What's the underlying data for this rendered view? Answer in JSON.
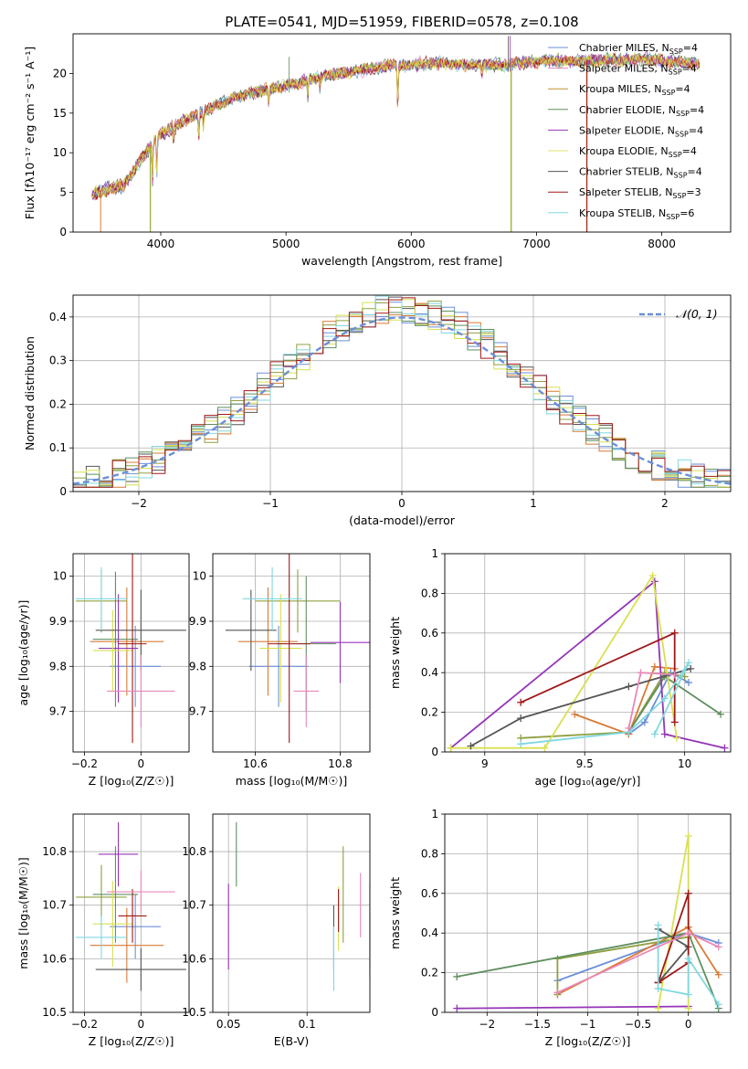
{
  "title": "PLATE=0541, MJD=51959, FIBERID=0578, z=0.108",
  "colors": [
    "#6b8fd8",
    "#d87a35",
    "#8fa040",
    "#5f8f5f",
    "#9535b8",
    "#d8e050",
    "#555555",
    "#a01818",
    "#80d8e0",
    "#e888b8"
  ],
  "chart_data": [
    {
      "id": "spectrum",
      "type": "line",
      "title": "PLATE=0541, MJD=51959, FIBERID=0578, z=0.108",
      "xlabel": "wavelength [Angstrom, rest frame]",
      "ylabel": "Flux [fλ10⁻¹⁷ erg cm⁻² s⁻¹ A⁻¹]",
      "xlim": [
        3300,
        8550
      ],
      "ylim": [
        0,
        25
      ],
      "xticks": [
        4000,
        5000,
        6000,
        7000,
        8000
      ],
      "yticks": [
        0,
        5,
        10,
        15,
        20
      ],
      "continuum": {
        "x": [
          3450,
          3700,
          4000,
          4300,
          4600,
          5000,
          5400,
          5800,
          6200,
          6600,
          7000,
          7400,
          7800,
          8300
        ],
        "y": [
          4.8,
          6.0,
          12.5,
          15.0,
          17.0,
          18.5,
          20.0,
          20.9,
          21.3,
          21.0,
          21.5,
          21.6,
          21.8,
          21.2
        ]
      },
      "legend": [
        "Chabrier MILES, N_SSP=4",
        "Salpeter MILES, N_SSP=4",
        "Kroupa MILES, N_SSP=4",
        "Chabrier ELODIE, N_SSP=4",
        "Salpeter ELODIE, N_SSP=4",
        "Kroupa ELODIE, N_SSP=4",
        "Chabrier STELIB, N_SSP=4",
        "Salpeter STELIB, N_SSP=3",
        "Kroupa STELIB, N_SSP=6"
      ],
      "legend_colors": [
        "#6b8fd8",
        "#e888b8",
        "#c09030",
        "#5f8f5f",
        "#9535b8",
        "#e0e070",
        "#555555",
        "#a01818",
        "#80d8e0"
      ],
      "legend_position": "upper-right"
    },
    {
      "id": "residuals",
      "type": "histogram",
      "xlabel": "(data-model)/error",
      "ylabel": "Normed distribution",
      "xlim": [
        -2.5,
        2.5
      ],
      "ylim": [
        0,
        0.45
      ],
      "xticks": [
        -2,
        -1,
        0,
        1,
        2
      ],
      "yticks": [
        0.0,
        0.1,
        0.2,
        0.3,
        0.4
      ],
      "legend": [
        "𝒩(0, 1)"
      ],
      "grid": true
    },
    {
      "id": "age-vs-Z",
      "type": "scatter",
      "xlabel": "Z [log₁₀(Z/Z☉)]",
      "ylabel": "age [log₁₀(age/yr)]",
      "xlim": [
        -0.24,
        0.17
      ],
      "ylim": [
        9.61,
        10.05
      ],
      "xticks": [
        -0.2,
        0.0
      ],
      "yticks": [
        9.7,
        9.8,
        9.9,
        10.0
      ],
      "points": [
        {
          "x": -0.02,
          "y": 9.8,
          "xerr": 0.09,
          "yerr": 0.09
        },
        {
          "x": -0.05,
          "y": 9.855,
          "xerr": 0.13,
          "yerr": 0.12
        },
        {
          "x": -0.14,
          "y": 9.945,
          "xerr": 0.09,
          "yerr": 0.07
        },
        {
          "x": -0.09,
          "y": 9.86,
          "xerr": 0.08,
          "yerr": 0.15
        },
        {
          "x": -0.08,
          "y": 9.84,
          "xerr": 0.07,
          "yerr": 0.12
        },
        {
          "x": -0.1,
          "y": 9.835,
          "xerr": 0.07,
          "yerr": 0.09
        },
        {
          "x": 0.0,
          "y": 9.88,
          "xerr": 0.16,
          "yerr": 0.09
        },
        {
          "x": -0.03,
          "y": 9.85,
          "xerr": 0.05,
          "yerr": 0.22
        },
        {
          "x": -0.14,
          "y": 9.95,
          "xerr": 0.09,
          "yerr": 0.07
        },
        {
          "x": 0.0,
          "y": 9.745,
          "xerr": 0.12,
          "yerr": 0.08
        }
      ]
    },
    {
      "id": "age-vs-mass",
      "type": "scatter",
      "xlabel": "mass [log₁₀(M/M☉)]",
      "ylabel": "",
      "xlim": [
        10.5,
        10.87
      ],
      "ylim": [
        9.61,
        10.05
      ],
      "xticks": [
        10.6,
        10.8
      ],
      "yticks": [
        9.7,
        9.8,
        9.9,
        10.0
      ],
      "points": [
        {
          "x": 10.655,
          "y": 9.8,
          "xerr": 0.07,
          "yerr": 0.09
        },
        {
          "x": 10.63,
          "y": 9.855,
          "xerr": 0.07,
          "yerr": 0.12
        },
        {
          "x": 10.7,
          "y": 9.945,
          "xerr": 0.1,
          "yerr": 0.07
        },
        {
          "x": 10.72,
          "y": 9.85,
          "xerr": 0.07,
          "yerr": 0.15
        },
        {
          "x": 10.8,
          "y": 9.853,
          "xerr": 0.07,
          "yerr": 0.09
        },
        {
          "x": 10.66,
          "y": 9.84,
          "xerr": 0.05,
          "yerr": 0.12
        },
        {
          "x": 10.59,
          "y": 9.88,
          "xerr": 0.06,
          "yerr": 0.09
        },
        {
          "x": 10.68,
          "y": 9.85,
          "xerr": 0.05,
          "yerr": 0.22
        },
        {
          "x": 10.64,
          "y": 9.95,
          "xerr": 0.07,
          "yerr": 0.07
        },
        {
          "x": 10.72,
          "y": 9.745,
          "xerr": 0.03,
          "yerr": 0.08
        }
      ]
    },
    {
      "id": "mass-weight-vs-age",
      "type": "line",
      "xlabel": "age [log₁₀(age/yr)]",
      "ylabel": "mass weight",
      "xlim": [
        8.8,
        10.23
      ],
      "ylim": [
        0,
        1.0
      ],
      "xticks": [
        9.0,
        9.5,
        10.0
      ],
      "yticks": [
        0.0,
        0.2,
        0.4,
        0.6,
        0.8,
        1.0
      ],
      "series": [
        {
          "x": [
            9.72,
            9.8,
            9.93,
            10.02
          ],
          "y": [
            0.09,
            0.15,
            0.4,
            0.35
          ]
        },
        {
          "x": [
            9.45,
            9.72,
            9.85,
            9.95
          ],
          "y": [
            0.19,
            0.09,
            0.43,
            0.42
          ]
        },
        {
          "x": [
            9.18,
            9.72,
            9.9,
            10.0
          ],
          "y": [
            0.07,
            0.1,
            0.4,
            0.38
          ]
        },
        {
          "x": [
            9.72,
            9.9,
            10.18
          ],
          "y": [
            0.1,
            0.38,
            0.19
          ]
        },
        {
          "x": [
            8.83,
            9.85,
            9.9,
            10.2
          ],
          "y": [
            0.02,
            0.86,
            0.09,
            0.02
          ]
        },
        {
          "x": [
            8.83,
            9.3,
            9.84,
            9.96
          ],
          "y": [
            0.02,
            0.02,
            0.89,
            0.07
          ]
        },
        {
          "x": [
            8.93,
            9.18,
            9.72,
            10.03
          ],
          "y": [
            0.03,
            0.17,
            0.33,
            0.42
          ]
        },
        {
          "x": [
            9.18,
            9.95,
            9.95
          ],
          "y": [
            0.25,
            0.6,
            0.15
          ]
        },
        {
          "x": [
            9.18,
            9.72,
            9.9,
            10.02,
            9.85
          ],
          "y": [
            0.04,
            0.1,
            0.27,
            0.45,
            0.09
          ]
        },
        {
          "x": [
            9.72,
            9.78,
            9.95
          ],
          "y": [
            0.12,
            0.4,
            0.39
          ]
        }
      ]
    },
    {
      "id": "mass-vs-Z",
      "type": "scatter",
      "xlabel": "Z [log₁₀(Z/Z☉)]",
      "ylabel": "mass [log₁₀(M/M☉)]",
      "xlim": [
        -0.24,
        0.17
      ],
      "ylim": [
        10.5,
        10.87
      ],
      "xticks": [
        -0.2,
        0.0
      ],
      "yticks": [
        10.5,
        10.6,
        10.7,
        10.8
      ],
      "points": [
        {
          "x": -0.02,
          "y": 10.66,
          "xerr": 0.09,
          "yerr": 0.06
        },
        {
          "x": -0.05,
          "y": 10.625,
          "xerr": 0.13,
          "yerr": 0.07
        },
        {
          "x": -0.14,
          "y": 10.715,
          "xerr": 0.09,
          "yerr": 0.06
        },
        {
          "x": -0.09,
          "y": 10.72,
          "xerr": 0.08,
          "yerr": 0.09
        },
        {
          "x": -0.08,
          "y": 10.795,
          "xerr": 0.07,
          "yerr": 0.06
        },
        {
          "x": -0.1,
          "y": 10.665,
          "xerr": 0.07,
          "yerr": 0.08
        },
        {
          "x": 0.0,
          "y": 10.58,
          "xerr": 0.16,
          "yerr": 0.04
        },
        {
          "x": -0.03,
          "y": 10.68,
          "xerr": 0.05,
          "yerr": 0.05
        },
        {
          "x": -0.14,
          "y": 10.64,
          "xerr": 0.09,
          "yerr": 0.04
        },
        {
          "x": 0.0,
          "y": 10.725,
          "xerr": 0.12,
          "yerr": 0.04
        }
      ]
    },
    {
      "id": "mass-vs-EBV",
      "type": "scatter",
      "xlabel": "E(B-V)",
      "ylabel": "",
      "xlim": [
        0.04,
        0.14
      ],
      "ylim": [
        10.5,
        10.87
      ],
      "xticks": [
        0.05,
        0.1
      ],
      "yticks": [
        10.5,
        10.6,
        10.7,
        10.8
      ],
      "points": [
        {
          "x": 0.14,
          "y": 10.66,
          "yerr": 0.08
        },
        {
          "x": 0.14,
          "y": 10.625,
          "yerr": 0.06
        },
        {
          "x": 0.123,
          "y": 10.72,
          "yerr": 0.09
        },
        {
          "x": 0.055,
          "y": 10.795,
          "yerr": 0.06
        },
        {
          "x": 0.05,
          "y": 10.66,
          "yerr": 0.08
        },
        {
          "x": 0.12,
          "y": 10.675,
          "yerr": 0.06
        },
        {
          "x": 0.117,
          "y": 10.64,
          "yerr": 0.06
        },
        {
          "x": 0.12,
          "y": 10.69,
          "yerr": 0.04
        },
        {
          "x": 0.117,
          "y": 10.6,
          "yerr": 0.06
        },
        {
          "x": 0.134,
          "y": 10.7,
          "yerr": 0.06
        }
      ]
    },
    {
      "id": "mass-weight-vs-Z",
      "type": "line",
      "xlabel": "Z [log₁₀(Z/Z☉)]",
      "ylabel": "mass weight",
      "xlim": [
        -2.42,
        0.42
      ],
      "ylim": [
        0,
        1.0
      ],
      "xticks": [
        -2.0,
        -1.5,
        -1.0,
        -0.5,
        0.0
      ],
      "yticks": [
        0.0,
        0.2,
        0.4,
        0.6,
        0.8,
        1.0
      ],
      "series": [
        {
          "x": [
            -1.3,
            0.0,
            0.3
          ],
          "y": [
            0.16,
            0.4,
            0.35
          ]
        },
        {
          "x": [
            -1.3,
            0.0,
            0.3
          ],
          "y": [
            0.09,
            0.43,
            0.19
          ]
        },
        {
          "x": [
            -1.3,
            -1.3,
            0.0
          ],
          "y": [
            0.09,
            0.27,
            0.38
          ]
        },
        {
          "x": [
            -2.3,
            0.0,
            0.3
          ],
          "y": [
            0.18,
            0.4,
            0.02
          ]
        },
        {
          "x": [
            -2.3,
            0.0
          ],
          "y": [
            0.02,
            0.03
          ]
        },
        {
          "x": [
            -0.3,
            0.0,
            0.0
          ],
          "y": [
            0.02,
            0.89,
            0.02
          ]
        },
        {
          "x": [
            -0.3,
            0.0,
            -0.3
          ],
          "y": [
            0.42,
            0.33,
            0.15
          ]
        },
        {
          "x": [
            -0.3,
            0.0,
            0.0,
            -0.3
          ],
          "y": [
            0.15,
            0.25,
            0.6,
            0.15
          ]
        },
        {
          "x": [
            -0.3,
            -0.3,
            0.0,
            0.0,
            0.3
          ],
          "y": [
            0.44,
            0.12,
            0.09,
            0.27,
            0.04
          ]
        },
        {
          "x": [
            -1.3,
            0.0,
            0.3
          ],
          "y": [
            0.1,
            0.4,
            0.33
          ]
        }
      ]
    }
  ]
}
